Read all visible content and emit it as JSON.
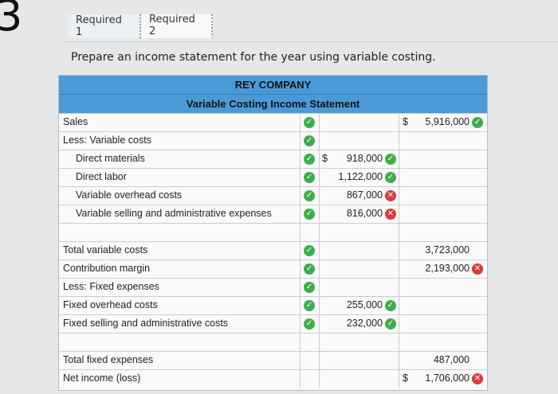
{
  "page": {
    "step_number": "3",
    "instruction": "Prepare an income statement for the year using variable costing."
  },
  "tabs": [
    {
      "label": "Required 1"
    },
    {
      "label": "Required 2"
    }
  ],
  "statement": {
    "company": "REY COMPANY",
    "title": "Variable Costing Income Statement",
    "rows": [
      {
        "label": "Sales",
        "indent": 0,
        "check": "ok",
        "dollar2": "$",
        "col2": "5,916,000",
        "col2_status": "ok"
      },
      {
        "label": "Less: Variable costs",
        "indent": 0,
        "check": "ok"
      },
      {
        "label": "Direct materials",
        "indent": 1,
        "check": "ok",
        "dollar1": "$",
        "col1": "918,000",
        "col1_status": "ok"
      },
      {
        "label": "Direct labor",
        "indent": 1,
        "check": "ok",
        "col1": "1,122,000",
        "col1_status": "ok"
      },
      {
        "label": "Variable overhead costs",
        "indent": 1,
        "check": "ok",
        "col1": "867,000",
        "col1_status": "bad"
      },
      {
        "label": "Variable selling and administrative expenses",
        "indent": 1,
        "check": "ok",
        "col1": "816,000",
        "col1_status": "bad"
      },
      {
        "label": "",
        "indent": 0
      },
      {
        "label": "Total variable costs",
        "indent": 0,
        "check": "ok",
        "col2": "3,723,000"
      },
      {
        "label": "Contribution margin",
        "indent": 0,
        "check": "ok",
        "col2": "2,193,000",
        "col2_status": "bad"
      },
      {
        "label": "Less: Fixed expenses",
        "indent": 0,
        "check": "ok"
      },
      {
        "label": "Fixed overhead costs",
        "indent": 0,
        "check": "ok",
        "col1": "255,000",
        "col1_status": "ok"
      },
      {
        "label": "Fixed selling and administrative costs",
        "indent": 0,
        "check": "ok",
        "col1": "232,000",
        "col1_status": "ok"
      },
      {
        "label": "",
        "indent": 0
      },
      {
        "label": "Total fixed expenses",
        "indent": 0,
        "col2": "487,000"
      },
      {
        "label": "Net income (loss)",
        "indent": 0,
        "dollar2": "$",
        "col2": "1,706,000",
        "col2_status": "bad"
      }
    ]
  },
  "icons": {
    "ok_color": "#3fae4a",
    "bad_color": "#d93a3a",
    "ok_icon": "check-circle-icon",
    "bad_icon": "x-circle-icon"
  }
}
